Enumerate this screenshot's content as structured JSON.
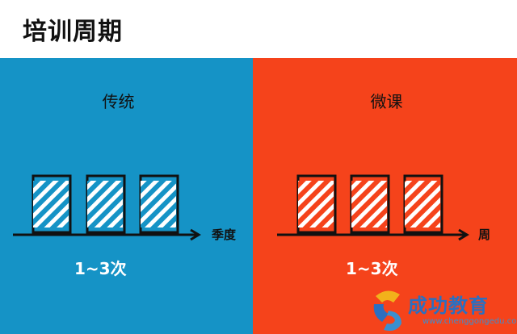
{
  "page": {
    "title": "培训周期"
  },
  "left_panel": {
    "heading": "传统",
    "axis_unit": "季度",
    "count": "1~3次",
    "bar_color": "#1593c6"
  },
  "right_panel": {
    "heading": "微课",
    "axis_unit": "周",
    "count": "1~3次",
    "bar_color": "#f5431b"
  },
  "watermark": {
    "brand": "成功教育",
    "url": "www.chenggongedu.com"
  }
}
